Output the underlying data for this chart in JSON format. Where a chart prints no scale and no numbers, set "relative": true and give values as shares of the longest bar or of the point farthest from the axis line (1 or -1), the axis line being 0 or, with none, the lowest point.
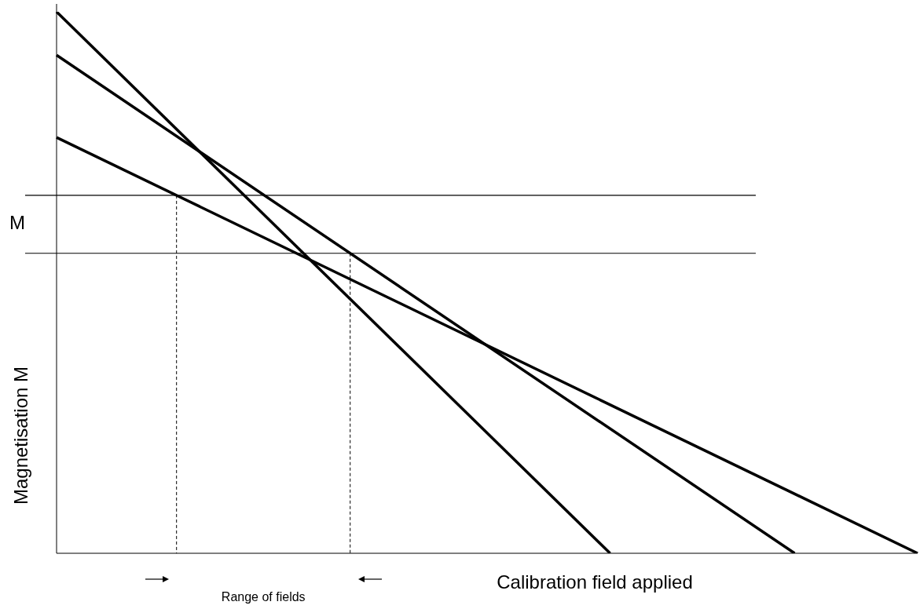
{
  "chart_data": {
    "type": "line",
    "relative": true,
    "xlabel": "Calibration field applied",
    "ylabel": "Magnetisation M",
    "legend": false,
    "marker": "none",
    "line_style": "solid",
    "categories": [
      null,
      null,
      null,
      null,
      null,
      null,
      null,
      null,
      null,
      null,
      null,
      null,
      null,
      null,
      null
    ],
    "series": [
      {
        "color": "#000000",
        "values": [
          1,
          null,
          null,
          null,
          null,
          null,
          null,
          null,
          null,
          0,
          null,
          null,
          null,
          null,
          null
        ]
      },
      {
        "color": "#000000",
        "values": [
          0.92,
          null,
          null,
          null,
          null,
          null,
          null,
          null,
          null,
          null,
          null,
          null,
          0,
          null,
          null
        ]
      },
      {
        "color": "#000000",
        "values": [
          0.768,
          null,
          null,
          null,
          null,
          null,
          null,
          null,
          null,
          null,
          null,
          null,
          null,
          null,
          0
        ]
      }
    ],
    "ref_lines": [
      {
        "axis": "y",
        "value": 0.661,
        "label": "M",
        "color": "#000000"
      },
      {
        "axis": "y",
        "value": 0.554,
        "color": "#000000"
      }
    ],
    "annotations": [
      "Range of fields"
    ]
  }
}
